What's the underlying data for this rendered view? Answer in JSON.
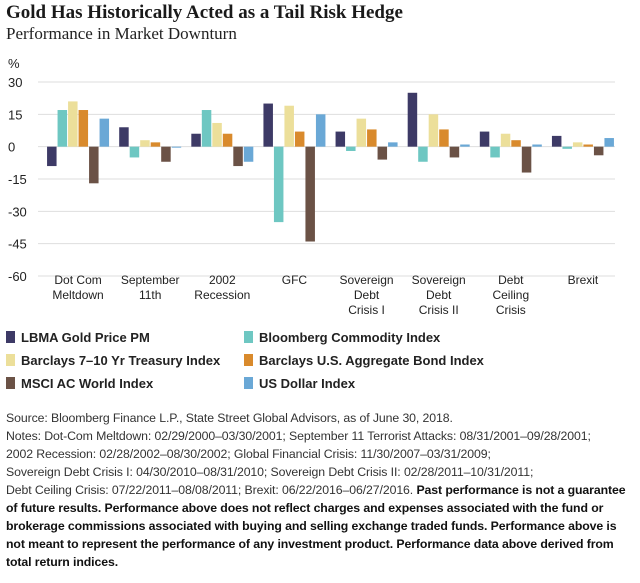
{
  "title": "Gold Has Historically Acted as a Tail Risk Hedge",
  "subtitle": "Performance in Market Downturn",
  "colors": {
    "gold": "#3d3a66",
    "commodity": "#6ec7c2",
    "treasury": "#ecdf9a",
    "aggregate": "#d98a2c",
    "msci": "#6b5246",
    "usd": "#6aa8d6"
  },
  "chart_data": {
    "type": "bar",
    "ylabel": "%",
    "ylim": [
      -60,
      30
    ],
    "yticks": [
      "30",
      "15",
      "0",
      "-15",
      "-30",
      "-45",
      "-60"
    ],
    "categories": [
      [
        "Dot Com",
        "Meltdown"
      ],
      [
        "September",
        "11th"
      ],
      [
        "2002",
        "Recession"
      ],
      [
        "GFC"
      ],
      [
        "Sovereign",
        "Debt",
        "Crisis I"
      ],
      [
        "Sovereign",
        "Debt",
        "Crisis II"
      ],
      [
        "Debt",
        "Ceiling",
        "Crisis"
      ],
      [
        "Brexit"
      ]
    ],
    "series": [
      {
        "name": "LBMA Gold Price PM",
        "color_key": "gold",
        "values": [
          -9,
          9,
          6,
          20,
          7,
          25,
          7,
          5
        ]
      },
      {
        "name": "Bloomberg Commodity Index",
        "color_key": "commodity",
        "values": [
          17,
          -5,
          17,
          -35,
          -2,
          -7,
          -5,
          -1
        ]
      },
      {
        "name": "Barclays 7–10 Yr Treasury Index",
        "color_key": "treasury",
        "values": [
          21,
          3,
          11,
          19,
          13,
          15,
          6,
          2
        ]
      },
      {
        "name": "Barclays U.S. Aggregate Bond Index",
        "color_key": "aggregate",
        "values": [
          17,
          2,
          6,
          7,
          8,
          8,
          3,
          1
        ]
      },
      {
        "name": "MSCI AC World Index",
        "color_key": "msci",
        "values": [
          -17,
          -7,
          -9,
          -44,
          -6,
          -5,
          -12,
          -4
        ]
      },
      {
        "name": "US Dollar Index",
        "color_key": "usd",
        "values": [
          13,
          0,
          -7,
          15,
          2,
          1,
          1,
          4
        ]
      }
    ]
  },
  "notes": {
    "source": "Source: Bloomberg Finance L.P., State Street Global Advisors, as of June 30, 2018.",
    "line1": "Notes: Dot-Com Meltdown: 02/29/2000–03/30/2001; September 11 Terrorist Attacks: 08/31/2001–09/28/2001;",
    "line2": "2002 Recession: 02/28/2002–08/30/2002; Global Financial Crisis: 11/30/2007–03/31/2009;",
    "line3": "Sovereign Debt Crisis I: 04/30/2010–08/31/2010; Sovereign Debt Crisis II: 02/28/2011–10/31/2011;",
    "line4": "Debt Ceiling Crisis: 07/22/2011–08/08/2011; Brexit: 06/22/2016–06/27/2016.",
    "disclaimer": "Past performance is not a guarantee of future results. Performance above does not reflect charges and expenses associated with the fund or brokerage commissions associated with buying and selling exchange traded funds. Performance above is not meant to represent the performance of any investment product. Performance data above derived from total return indices."
  }
}
